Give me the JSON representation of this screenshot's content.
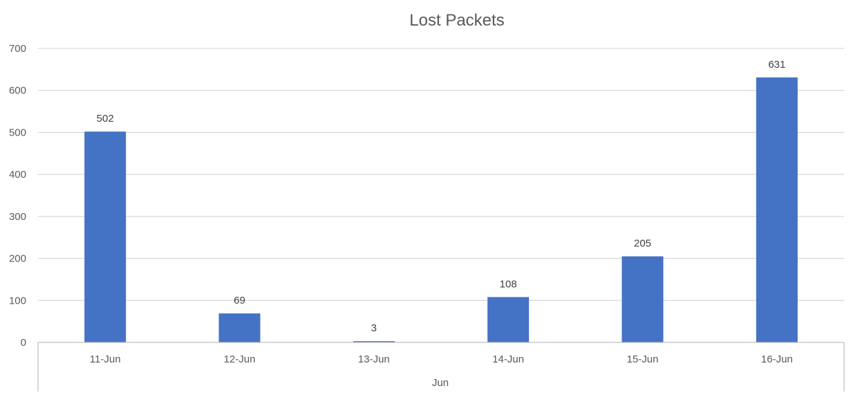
{
  "chart_data": {
    "type": "bar",
    "title": "Lost Packets",
    "categories": [
      "11-Jun",
      "12-Jun",
      "13-Jun",
      "14-Jun",
      "15-Jun",
      "16-Jun"
    ],
    "group_label": "Jun",
    "values": [
      502,
      69,
      3,
      108,
      205,
      631
    ],
    "ylim": [
      0,
      700
    ],
    "yticks": [
      0,
      100,
      200,
      300,
      400,
      500,
      600,
      700
    ],
    "grid": true,
    "legend": "none",
    "bar_color": "#4472C4"
  }
}
